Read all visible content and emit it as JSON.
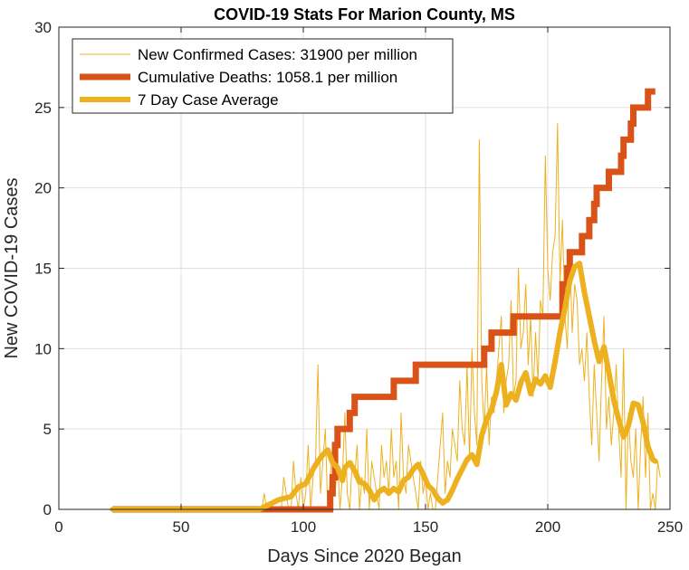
{
  "chart_data": {
    "type": "line",
    "title": "COVID-19 Stats For Marion County, MS",
    "xlabel": "Days Since 2020 Began",
    "ylabel": "New COVID-19 Cases",
    "xlim": [
      0,
      250
    ],
    "ylim": [
      0,
      30
    ],
    "xticks": [
      0,
      50,
      100,
      150,
      200,
      250
    ],
    "yticks": [
      0,
      5,
      10,
      15,
      20,
      25,
      30
    ],
    "grid": true,
    "legend_position": "top-left",
    "series": [
      {
        "name": "New Confirmed Cases: 31900 per million",
        "color": "#EDB120",
        "line_width": "thin",
        "x_start": 22,
        "values": [
          0,
          0,
          0,
          0,
          0,
          0,
          0,
          0,
          0,
          0,
          0,
          0,
          0,
          0,
          0,
          0,
          0,
          0,
          0,
          0,
          0,
          0,
          0,
          0,
          0,
          0,
          0,
          0,
          0,
          0,
          0,
          0,
          0,
          0,
          0,
          0,
          0,
          0,
          0,
          0,
          0,
          0,
          0,
          0,
          0,
          0,
          0,
          0,
          0,
          0,
          0,
          0,
          0,
          0,
          0,
          0,
          0,
          0,
          0,
          0,
          0,
          0,
          1,
          0,
          0,
          0,
          0,
          0,
          0,
          0,
          2,
          1,
          0,
          0,
          3,
          1,
          0,
          2,
          0,
          1,
          4,
          0,
          2,
          3,
          9,
          1,
          3,
          5,
          0,
          2,
          4,
          1,
          3,
          0,
          2,
          6,
          1,
          0,
          3,
          2,
          4,
          0,
          2,
          1,
          5,
          0,
          3,
          2,
          1,
          0,
          4,
          2,
          3,
          1,
          5,
          2,
          3,
          0,
          6,
          2,
          1,
          4,
          3,
          2,
          1,
          0,
          3,
          1,
          2,
          0,
          1,
          0,
          0,
          2,
          4,
          6,
          1,
          3,
          2,
          5,
          4,
          3,
          8,
          5,
          4,
          9,
          3,
          10,
          6,
          4,
          23,
          8,
          5,
          9,
          4,
          7,
          6,
          8,
          10,
          12,
          6,
          8,
          9,
          13,
          7,
          8,
          15,
          10,
          11,
          14,
          9,
          12,
          7,
          11,
          8,
          13,
          12,
          22,
          15,
          13,
          16,
          17,
          24,
          14,
          18,
          12,
          10,
          16,
          11,
          14,
          13,
          9,
          10,
          8,
          11,
          7,
          4,
          9,
          6,
          3,
          8,
          12,
          5,
          7,
          4,
          6,
          9,
          5,
          2,
          10,
          0,
          6,
          3,
          2,
          5,
          0,
          4,
          7,
          2,
          6,
          0,
          1,
          0,
          3,
          2
        ]
      },
      {
        "name": "Cumulative Deaths: 1058.1 per million",
        "color": "#D95319",
        "line_width": "thick",
        "steps": [
          [
            22,
            0
          ],
          [
            110,
            0
          ],
          [
            111,
            1
          ],
          [
            112,
            2
          ],
          [
            113,
            4
          ],
          [
            114,
            5
          ],
          [
            119,
            6
          ],
          [
            121,
            7
          ],
          [
            137,
            8
          ],
          [
            146,
            9
          ],
          [
            174,
            10
          ],
          [
            177,
            11
          ],
          [
            186,
            12
          ],
          [
            206,
            14
          ],
          [
            208,
            15
          ],
          [
            209,
            16
          ],
          [
            214,
            17
          ],
          [
            217,
            18
          ],
          [
            219,
            19
          ],
          [
            220,
            20
          ],
          [
            225,
            21
          ],
          [
            230,
            22
          ],
          [
            231,
            23
          ],
          [
            234,
            24
          ],
          [
            235,
            25
          ],
          [
            241,
            26
          ],
          [
            244,
            26
          ]
        ]
      },
      {
        "name": "7 Day Case Average",
        "color": "#EDB120",
        "line_width": "medium",
        "points": [
          [
            22,
            0
          ],
          [
            82,
            0
          ],
          [
            86,
            0.3
          ],
          [
            90,
            0.6
          ],
          [
            95,
            0.8
          ],
          [
            98,
            1.4
          ],
          [
            101,
            1.6
          ],
          [
            104,
            2.5
          ],
          [
            106,
            3.0
          ],
          [
            108,
            3.4
          ],
          [
            110,
            3.7
          ],
          [
            112,
            2.9
          ],
          [
            114,
            2.6
          ],
          [
            116,
            1.8
          ],
          [
            117,
            2.6
          ],
          [
            119,
            2.9
          ],
          [
            121,
            2.4
          ],
          [
            123,
            1.7
          ],
          [
            125,
            1.6
          ],
          [
            127,
            1.2
          ],
          [
            129,
            0.6
          ],
          [
            131,
            1.1
          ],
          [
            133,
            1.3
          ],
          [
            135,
            1.0
          ],
          [
            137,
            1.3
          ],
          [
            139,
            1.1
          ],
          [
            141,
            1.8
          ],
          [
            143,
            2.0
          ],
          [
            145,
            2.5
          ],
          [
            147,
            2.8
          ],
          [
            149,
            2.2
          ],
          [
            151,
            1.5
          ],
          [
            153,
            1.2
          ],
          [
            155,
            0.7
          ],
          [
            157,
            0.4
          ],
          [
            159,
            0.6
          ],
          [
            161,
            1.2
          ],
          [
            163,
            1.9
          ],
          [
            165,
            2.5
          ],
          [
            167,
            3.1
          ],
          [
            169,
            3.4
          ],
          [
            171,
            2.8
          ],
          [
            173,
            4.6
          ],
          [
            175,
            5.6
          ],
          [
            177,
            6.2
          ],
          [
            179,
            7.3
          ],
          [
            181,
            9.0
          ],
          [
            183,
            6.5
          ],
          [
            185,
            7.2
          ],
          [
            187,
            6.8
          ],
          [
            189,
            7.9
          ],
          [
            191,
            8.5
          ],
          [
            193,
            7.2
          ],
          [
            195,
            8.1
          ],
          [
            197,
            7.8
          ],
          [
            199,
            8.3
          ],
          [
            201,
            7.6
          ],
          [
            203,
            9.2
          ],
          [
            205,
            11.0
          ],
          [
            207,
            12.5
          ],
          [
            209,
            14.2
          ],
          [
            211,
            15.1
          ],
          [
            213,
            15.3
          ],
          [
            215,
            13.5
          ],
          [
            217,
            12.0
          ],
          [
            219,
            10.5
          ],
          [
            221,
            9.2
          ],
          [
            223,
            10.1
          ],
          [
            225,
            8.5
          ],
          [
            227,
            6.8
          ],
          [
            229,
            5.6
          ],
          [
            231,
            4.5
          ],
          [
            233,
            5.2
          ],
          [
            235,
            6.6
          ],
          [
            237,
            6.5
          ],
          [
            239,
            5.4
          ],
          [
            241,
            3.9
          ],
          [
            243,
            3.1
          ],
          [
            244,
            3.0
          ]
        ]
      }
    ]
  }
}
